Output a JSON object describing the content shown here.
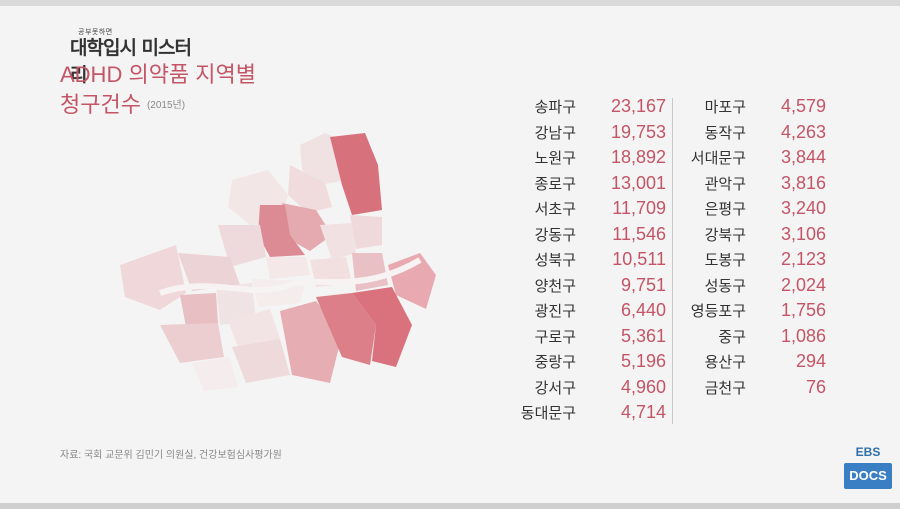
{
  "logo": {
    "small": "공부못하면",
    "big": "대학입시 미스터리"
  },
  "title": {
    "line1": "ADHD 의약품 지역별",
    "line2": "청구건수",
    "year": "(2015년)"
  },
  "left_column": [
    {
      "name": "송파구",
      "value": "23,167"
    },
    {
      "name": "강남구",
      "value": "19,753"
    },
    {
      "name": "노원구",
      "value": "18,892"
    },
    {
      "name": "종로구",
      "value": "13,001"
    },
    {
      "name": "서초구",
      "value": "11,709"
    },
    {
      "name": "강동구",
      "value": "11,546"
    },
    {
      "name": "성북구",
      "value": "10,511"
    },
    {
      "name": "양천구",
      "value": "9,751"
    },
    {
      "name": "광진구",
      "value": "6,440"
    },
    {
      "name": "구로구",
      "value": "5,361"
    },
    {
      "name": "중랑구",
      "value": "5,196"
    },
    {
      "name": "강서구",
      "value": "4,960"
    },
    {
      "name": "동대문구",
      "value": "4,714"
    }
  ],
  "right_column": [
    {
      "name": "마포구",
      "value": "4,579"
    },
    {
      "name": "동작구",
      "value": "4,263"
    },
    {
      "name": "서대문구",
      "value": "3,844"
    },
    {
      "name": "관악구",
      "value": "3,816"
    },
    {
      "name": "은평구",
      "value": "3,240"
    },
    {
      "name": "강북구",
      "value": "3,106"
    },
    {
      "name": "도봉구",
      "value": "2,123"
    },
    {
      "name": "성동구",
      "value": "2,024"
    },
    {
      "name": "영등포구",
      "value": "1,756"
    },
    {
      "name": "중구",
      "value": "1,086"
    },
    {
      "name": "용산구",
      "value": "294"
    },
    {
      "name": "금천구",
      "value": "76"
    }
  ],
  "source": "자료: 국회 교문위 김민기 의원실, 건강보험심사평가원",
  "badge": {
    "top": "EBS",
    "box": "DOCS"
  },
  "colors": {
    "accent": "#c45566",
    "badge": "#3a7fc4"
  }
}
